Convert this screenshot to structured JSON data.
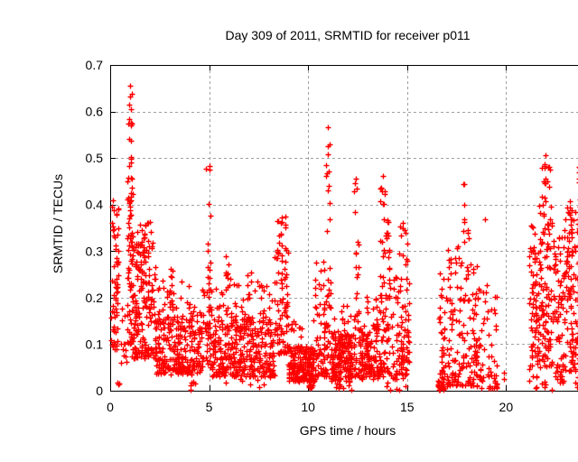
{
  "chart_data": {
    "type": "scatter",
    "title": "Day 309 of 2011, SRMTID for receiver p011",
    "xlabel": "GPS time / hours",
    "ylabel": "SRMTID / TECUs",
    "xlim": [
      0,
      24
    ],
    "ylim": [
      0,
      0.7
    ],
    "xticks": [
      0,
      5,
      10,
      15,
      20
    ],
    "xtick_labels": [
      "0",
      "5",
      "10",
      "15",
      "20"
    ],
    "yticks": [
      0,
      0.1,
      0.2,
      0.3,
      0.4,
      0.5,
      0.6,
      0.7
    ],
    "ytick_labels": [
      "0",
      "0.1",
      "0.2",
      "0.3",
      "0.4",
      "0.5",
      "0.6",
      "0.7"
    ],
    "grid": true,
    "grid_style": "dashed",
    "legend": "none",
    "marker": "plus",
    "marker_color": "#ff0000",
    "grid_color": "#a0a0a0",
    "border_color": "#000000",
    "background": "#ffffff",
    "seed": 309,
    "data_gaps_hours": [
      [
        15.15,
        16.5
      ],
      [
        19.95,
        21.12
      ]
    ],
    "notable_points": [
      [
        18.95,
        0.368
      ],
      [
        1.0,
        0.655
      ],
      [
        11.0,
        0.566
      ],
      [
        22.0,
        0.506
      ],
      [
        5.0,
        0.482
      ],
      [
        23.85,
        0.49
      ],
      [
        12.42,
        0.455
      ],
      [
        13.8,
        0.462
      ],
      [
        17.9,
        0.444
      ],
      [
        8.65,
        0.372
      ],
      [
        0.15,
        0.41
      ],
      [
        10.1,
        0.01
      ],
      [
        16.7,
        0.01
      ]
    ],
    "point_bands": [
      {
        "x": [
          0.02,
          0.42
        ],
        "y": [
          0.09,
          0.41
        ],
        "n": 60,
        "bias": 1.1
      },
      {
        "x": [
          0.3,
          0.48
        ],
        "y": [
          0.0,
          0.018
        ],
        "n": 3,
        "bias": 1
      },
      {
        "x": [
          0.55,
          0.85
        ],
        "y": [
          0.06,
          0.18
        ],
        "n": 12,
        "bias": 1.2
      },
      {
        "x": [
          0.85,
          1.15
        ],
        "y": [
          0.1,
          0.5
        ],
        "n": 70,
        "bias": 1.25
      },
      {
        "x": [
          0.9,
          1.1
        ],
        "y": [
          0.5,
          0.655
        ],
        "n": 12,
        "bias": 1
      },
      {
        "x": [
          1.1,
          2.3
        ],
        "y": [
          0.07,
          0.33
        ],
        "n": 170,
        "bias": 1.55
      },
      {
        "x": [
          1.3,
          2.1
        ],
        "y": [
          0.29,
          0.385
        ],
        "n": 26,
        "bias": 1
      },
      {
        "x": [
          2.3,
          4.6
        ],
        "y": [
          0.035,
          0.17
        ],
        "n": 270,
        "bias": 1.35
      },
      {
        "x": [
          2.4,
          4.5
        ],
        "y": [
          0.17,
          0.24
        ],
        "n": 24,
        "bias": 1.2
      },
      {
        "x": [
          3.0,
          3.22
        ],
        "y": [
          0.18,
          0.275
        ],
        "n": 9,
        "bias": 1
      },
      {
        "x": [
          4.05,
          4.35
        ],
        "y": [
          0.0,
          0.02
        ],
        "n": 6,
        "bias": 1
      },
      {
        "x": [
          4.6,
          5.15
        ],
        "y": [
          0.05,
          0.22
        ],
        "n": 55,
        "bias": 1.2
      },
      {
        "x": [
          4.85,
          5.1
        ],
        "y": [
          0.22,
          0.485
        ],
        "n": 12,
        "bias": 1
      },
      {
        "x": [
          5.15,
          8.3
        ],
        "y": [
          0.03,
          0.16
        ],
        "n": 340,
        "bias": 1.4
      },
      {
        "x": [
          5.2,
          8.2
        ],
        "y": [
          0.15,
          0.24
        ],
        "n": 42,
        "bias": 1.25
      },
      {
        "x": [
          5.8,
          6.0
        ],
        "y": [
          0.17,
          0.3
        ],
        "n": 9,
        "bias": 1
      },
      {
        "x": [
          6.9,
          7.15
        ],
        "y": [
          0.19,
          0.26
        ],
        "n": 6,
        "bias": 1
      },
      {
        "x": [
          5.5,
          8.0
        ],
        "y": [
          0.0,
          0.025
        ],
        "n": 7,
        "bias": 1
      },
      {
        "x": [
          8.3,
          9.0
        ],
        "y": [
          0.08,
          0.3
        ],
        "n": 75,
        "bias": 1.3
      },
      {
        "x": [
          8.4,
          8.9
        ],
        "y": [
          0.3,
          0.375
        ],
        "n": 15,
        "bias": 1
      },
      {
        "x": [
          9.0,
          10.35
        ],
        "y": [
          0.02,
          0.095
        ],
        "n": 210,
        "bias": 1.2
      },
      {
        "x": [
          9.05,
          10.3
        ],
        "y": [
          0.095,
          0.155
        ],
        "n": 14,
        "bias": 1.2
      },
      {
        "x": [
          10.0,
          10.25
        ],
        "y": [
          0.004,
          0.02
        ],
        "n": 12,
        "bias": 1
      },
      {
        "x": [
          10.35,
          11.15
        ],
        "y": [
          0.03,
          0.28
        ],
        "n": 95,
        "bias": 1.6
      },
      {
        "x": [
          10.9,
          11.1
        ],
        "y": [
          0.28,
          0.57
        ],
        "n": 12,
        "bias": 1.1
      },
      {
        "x": [
          11.15,
          12.25
        ],
        "y": [
          0.02,
          0.125
        ],
        "n": 175,
        "bias": 1.3
      },
      {
        "x": [
          11.2,
          12.2
        ],
        "y": [
          0.125,
          0.19
        ],
        "n": 12,
        "bias": 1.2
      },
      {
        "x": [
          11.4,
          12.2
        ],
        "y": [
          0.0,
          0.018
        ],
        "n": 8,
        "bias": 1
      },
      {
        "x": [
          12.28,
          12.6
        ],
        "y": [
          0.03,
          0.2
        ],
        "n": 30,
        "bias": 1.3
      },
      {
        "x": [
          12.3,
          12.55
        ],
        "y": [
          0.2,
          0.455
        ],
        "n": 13,
        "bias": 1
      },
      {
        "x": [
          12.6,
          13.55
        ],
        "y": [
          0.025,
          0.145
        ],
        "n": 125,
        "bias": 1.3
      },
      {
        "x": [
          12.8,
          13.5
        ],
        "y": [
          0.145,
          0.21
        ],
        "n": 9,
        "bias": 1.2
      },
      {
        "x": [
          13.6,
          14.15
        ],
        "y": [
          0.1,
          0.375
        ],
        "n": 55,
        "bias": 1.2
      },
      {
        "x": [
          13.65,
          13.95
        ],
        "y": [
          0.39,
          0.465
        ],
        "n": 9,
        "bias": 1
      },
      {
        "x": [
          13.55,
          14.2
        ],
        "y": [
          0.03,
          0.1
        ],
        "n": 30,
        "bias": 1.1
      },
      {
        "x": [
          14.2,
          15.1
        ],
        "y": [
          0.025,
          0.25
        ],
        "n": 95,
        "bias": 1.5
      },
      {
        "x": [
          14.6,
          15.02
        ],
        "y": [
          0.25,
          0.37
        ],
        "n": 12,
        "bias": 1
      },
      {
        "x": [
          13.9,
          15.05
        ],
        "y": [
          0.0,
          0.02
        ],
        "n": 6,
        "bias": 1
      },
      {
        "x": [
          16.55,
          16.85
        ],
        "y": [
          0.002,
          0.03
        ],
        "n": 28,
        "bias": 1.2
      },
      {
        "x": [
          16.6,
          17.0
        ],
        "y": [
          0.03,
          0.27
        ],
        "n": 30,
        "bias": 1.4
      },
      {
        "x": [
          17.0,
          18.6
        ],
        "y": [
          0.01,
          0.28
        ],
        "n": 150,
        "bias": 1.6
      },
      {
        "x": [
          17.05,
          17.6
        ],
        "y": [
          0.26,
          0.32
        ],
        "n": 8,
        "bias": 1
      },
      {
        "x": [
          17.75,
          18.1
        ],
        "y": [
          0.3,
          0.445
        ],
        "n": 9,
        "bias": 1
      },
      {
        "x": [
          18.6,
          19.55
        ],
        "y": [
          0.005,
          0.25
        ],
        "n": 55,
        "bias": 1.8
      },
      {
        "x": [
          18.6,
          19.9
        ],
        "y": [
          0.005,
          0.04
        ],
        "n": 8,
        "bias": 1
      },
      {
        "x": [
          21.15,
          21.6
        ],
        "y": [
          0.02,
          0.3
        ],
        "n": 60,
        "bias": 1.3
      },
      {
        "x": [
          21.2,
          21.5
        ],
        "y": [
          0.3,
          0.36
        ],
        "n": 8,
        "bias": 1
      },
      {
        "x": [
          21.6,
          22.35
        ],
        "y": [
          0.05,
          0.4
        ],
        "n": 115,
        "bias": 1.25
      },
      {
        "x": [
          21.75,
          22.25
        ],
        "y": [
          0.4,
          0.51
        ],
        "n": 16,
        "bias": 1
      },
      {
        "x": [
          22.35,
          22.95
        ],
        "y": [
          0.02,
          0.33
        ],
        "n": 70,
        "bias": 1.4
      },
      {
        "x": [
          22.95,
          23.35
        ],
        "y": [
          0.04,
          0.37
        ],
        "n": 65,
        "bias": 1.2
      },
      {
        "x": [
          23.0,
          23.3
        ],
        "y": [
          0.37,
          0.41
        ],
        "n": 7,
        "bias": 1
      },
      {
        "x": [
          23.35,
          23.97
        ],
        "y": [
          0.03,
          0.4
        ],
        "n": 95,
        "bias": 1.3
      },
      {
        "x": [
          23.6,
          23.95
        ],
        "y": [
          0.4,
          0.49
        ],
        "n": 11,
        "bias": 1
      },
      {
        "x": [
          21.3,
          23.9
        ],
        "y": [
          0.0,
          0.025
        ],
        "n": 12,
        "bias": 1
      }
    ]
  }
}
